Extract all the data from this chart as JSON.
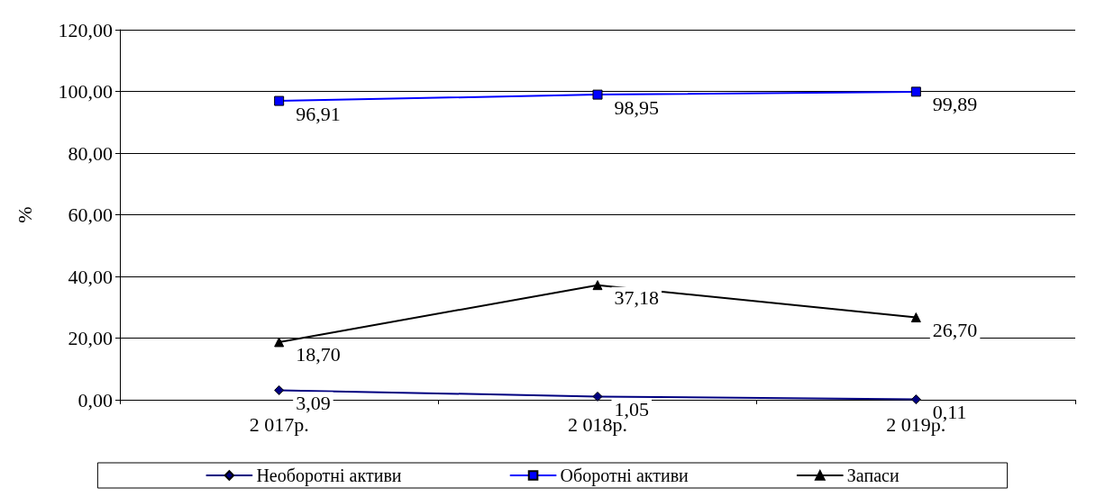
{
  "chart_data": {
    "type": "line",
    "ylabel": "%",
    "categories": [
      "2 017р.",
      "2 018р.",
      "2 019р."
    ],
    "series": [
      {
        "name": "Необоротні активи",
        "color": "#000080",
        "marker": "diamond",
        "values": [
          3.09,
          1.05,
          0.11
        ],
        "value_labels": [
          "3,09",
          "1,05",
          "0,11"
        ]
      },
      {
        "name": "Оборотні активи",
        "color": "#0000ff",
        "marker": "square",
        "values": [
          96.91,
          98.95,
          99.89
        ],
        "value_labels": [
          "96,91",
          "98,95",
          "99,89"
        ]
      },
      {
        "name": "Запаси",
        "color": "#000000",
        "marker": "triangle",
        "values": [
          18.7,
          37.18,
          26.7
        ],
        "value_labels": [
          "18,70",
          "37,18",
          "26,70"
        ]
      }
    ],
    "ylim": [
      0,
      120
    ],
    "yticks": [
      {
        "value": 0,
        "label": "0,00"
      },
      {
        "value": 20,
        "label": "20,00"
      },
      {
        "value": 40,
        "label": "40,00"
      },
      {
        "value": 60,
        "label": "60,00"
      },
      {
        "value": 80,
        "label": "80,00"
      },
      {
        "value": 100,
        "label": "100,00"
      },
      {
        "value": 120,
        "label": "120,00"
      }
    ],
    "grid": "y",
    "legend": "bottom",
    "line_style": "solid"
  }
}
